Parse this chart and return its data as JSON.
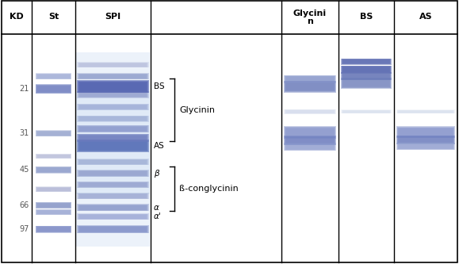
{
  "fig_width": 5.79,
  "fig_height": 3.33,
  "dpi": 100,
  "bg_color": "#ffffff",
  "col_headers": [
    "KD",
    "St",
    "SPI",
    "",
    "Glycinin\nn",
    "BS",
    "AS"
  ],
  "mw_markers": {
    "97": 0.855,
    "66": 0.75,
    "45": 0.595,
    "31": 0.435,
    "21": 0.24
  },
  "brace_right_label": "]",
  "bracket_color": "black"
}
